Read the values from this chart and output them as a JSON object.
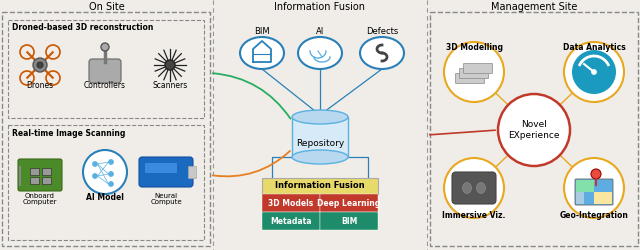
{
  "title_onsite": "On Site",
  "title_info_fusion": "Information Fusion",
  "title_mgmt": "Management Site",
  "box1_title": "Droned-based 3D reconstruction",
  "box1_items": [
    "Drones",
    "Controllers",
    "Scanners"
  ],
  "box2_title": "Real-time Image Scanning",
  "box2_items_line1": [
    "Onboard",
    "AI Model",
    "Neural"
  ],
  "box2_items_line2": [
    "Computer",
    "",
    "Compute"
  ],
  "top_nodes": [
    "BIM",
    "AI",
    "Defects"
  ],
  "repo_label": "Repository",
  "info_fusion_label": "Information Fusion",
  "fusion_rows": [
    [
      "3D Models",
      "Deep Learning"
    ],
    [
      "Metadata",
      "BIM"
    ]
  ],
  "fusion_row_colors": [
    [
      "#c0392b",
      "#c0392b"
    ],
    [
      "#1e8c6a",
      "#1e8c6a"
    ]
  ],
  "fusion_header_color": "#e8d96b",
  "center_label": "Novel\nEXperience",
  "mgmt_items": [
    "3D Modelling",
    "Data Analytics",
    "Immersive Viz.",
    "Geo-Integration"
  ],
  "bg_color": "#f0ede8",
  "dashed_border_color": "#888888",
  "orange_circle_color": "#e8a820",
  "red_circle_color": "#c0392b",
  "blue_circle_color": "#2980b9",
  "teal_circle_color": "#1a9abf",
  "green_line_color": "#27ae60",
  "orange_line_color": "#e67e22",
  "red_line_color": "#c0392b",
  "section_divider_color": "#999999",
  "node_oval_color": "#2980b9",
  "repo_body_color": "#d6eaf8",
  "repo_edge_color": "#5ab0e0"
}
